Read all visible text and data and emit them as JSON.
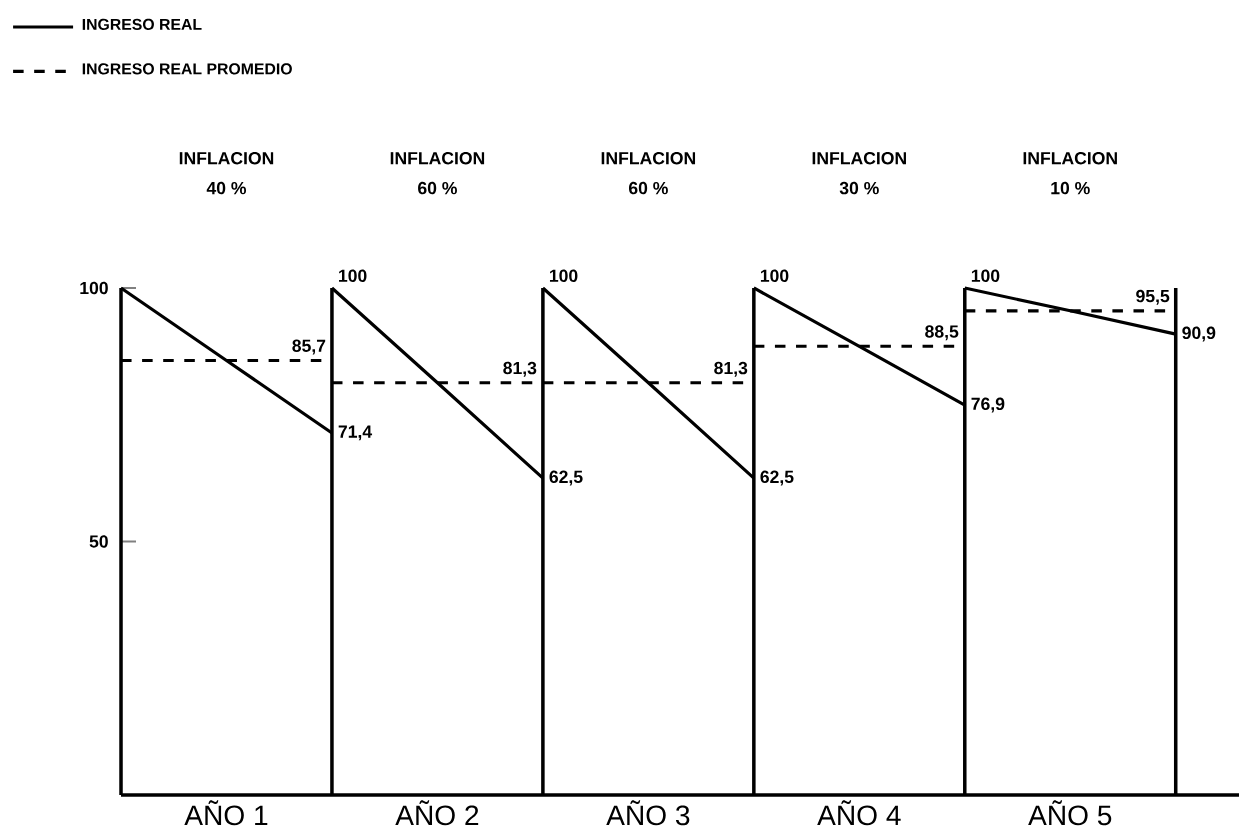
{
  "chart_data": {
    "type": "line",
    "categories": [
      null,
      "AÑO 1",
      null,
      "AÑO 2",
      null,
      "AÑO 3",
      null,
      "AÑO 4",
      null,
      "AÑO 5",
      null
    ],
    "ylim": [
      0,
      100
    ],
    "yticks": [
      50,
      100
    ],
    "legend": "top left",
    "series": [
      {
        "name": "INGRESO REAL",
        "color": "#000000",
        "line_style": "solid",
        "values": [
          100,
          85.7,
          71.4,
          null,
          null,
          null,
          null,
          null,
          null,
          null,
          null
        ],
        "value_labels": [
          null,
          null,
          "71,4",
          null,
          null,
          null,
          null,
          null,
          null,
          null,
          null
        ]
      },
      {
        "color": "#000000",
        "line_style": "solid",
        "values": [
          null,
          null,
          100,
          81.3,
          62.5,
          null,
          null,
          null,
          null,
          null,
          null
        ],
        "value_labels": [
          null,
          null,
          "100",
          null,
          "62,5",
          null,
          null,
          null,
          null,
          null,
          null
        ]
      },
      {
        "color": "#000000",
        "line_style": "solid",
        "values": [
          null,
          null,
          null,
          null,
          100,
          81.3,
          62.5,
          null,
          null,
          null,
          null
        ],
        "value_labels": [
          null,
          null,
          null,
          null,
          "100",
          null,
          "62,5",
          null,
          null,
          null,
          null
        ]
      },
      {
        "color": "#000000",
        "line_style": "solid",
        "values": [
          null,
          null,
          null,
          null,
          null,
          null,
          100,
          88.5,
          76.9,
          null,
          null
        ],
        "value_labels": [
          null,
          null,
          null,
          null,
          null,
          null,
          "100",
          null,
          "76,9",
          null,
          null
        ]
      },
      {
        "color": "#000000",
        "line_style": "solid",
        "values": [
          null,
          null,
          null,
          null,
          null,
          null,
          null,
          null,
          100,
          95.5,
          90.9
        ],
        "value_labels": [
          null,
          null,
          null,
          null,
          null,
          null,
          null,
          null,
          "100",
          null,
          "90,9"
        ]
      },
      {
        "name": "INGRESO REAL PROMEDIO",
        "color": "#000000",
        "line_style": "dashed",
        "values": [
          85.7,
          85.7,
          85.7,
          null,
          null,
          null,
          null,
          null,
          null,
          null,
          null
        ],
        "value_labels": [
          null,
          null,
          "85,7",
          null,
          null,
          null,
          null,
          null,
          null,
          null,
          null
        ]
      },
      {
        "color": "#000000",
        "line_style": "dashed",
        "values": [
          null,
          null,
          81.3,
          81.3,
          81.3,
          81.3,
          81.3,
          null,
          null,
          null,
          null
        ],
        "value_labels": [
          null,
          null,
          null,
          null,
          "81,3",
          null,
          "81,3",
          null,
          null,
          null,
          null
        ]
      },
      {
        "color": "#000000",
        "line_style": "dashed",
        "values": [
          null,
          null,
          null,
          null,
          null,
          null,
          88.5,
          88.5,
          88.5,
          null,
          null
        ],
        "value_labels": [
          null,
          null,
          null,
          null,
          null,
          null,
          null,
          null,
          "88,5",
          null,
          null
        ]
      },
      {
        "color": "#000000",
        "line_style": "dashed",
        "values": [
          null,
          null,
          null,
          null,
          null,
          null,
          null,
          null,
          95.5,
          95.5,
          95.5
        ],
        "value_labels": [
          null,
          null,
          null,
          null,
          null,
          null,
          null,
          null,
          null,
          null,
          "95,5"
        ]
      }
    ],
    "annotations": [
      "INFLACION",
      "40 %",
      "INFLACION",
      "60 %",
      "INFLACION",
      "60 %",
      "INFLACION",
      "30 %",
      "INFLACION",
      "10 %"
    ]
  }
}
